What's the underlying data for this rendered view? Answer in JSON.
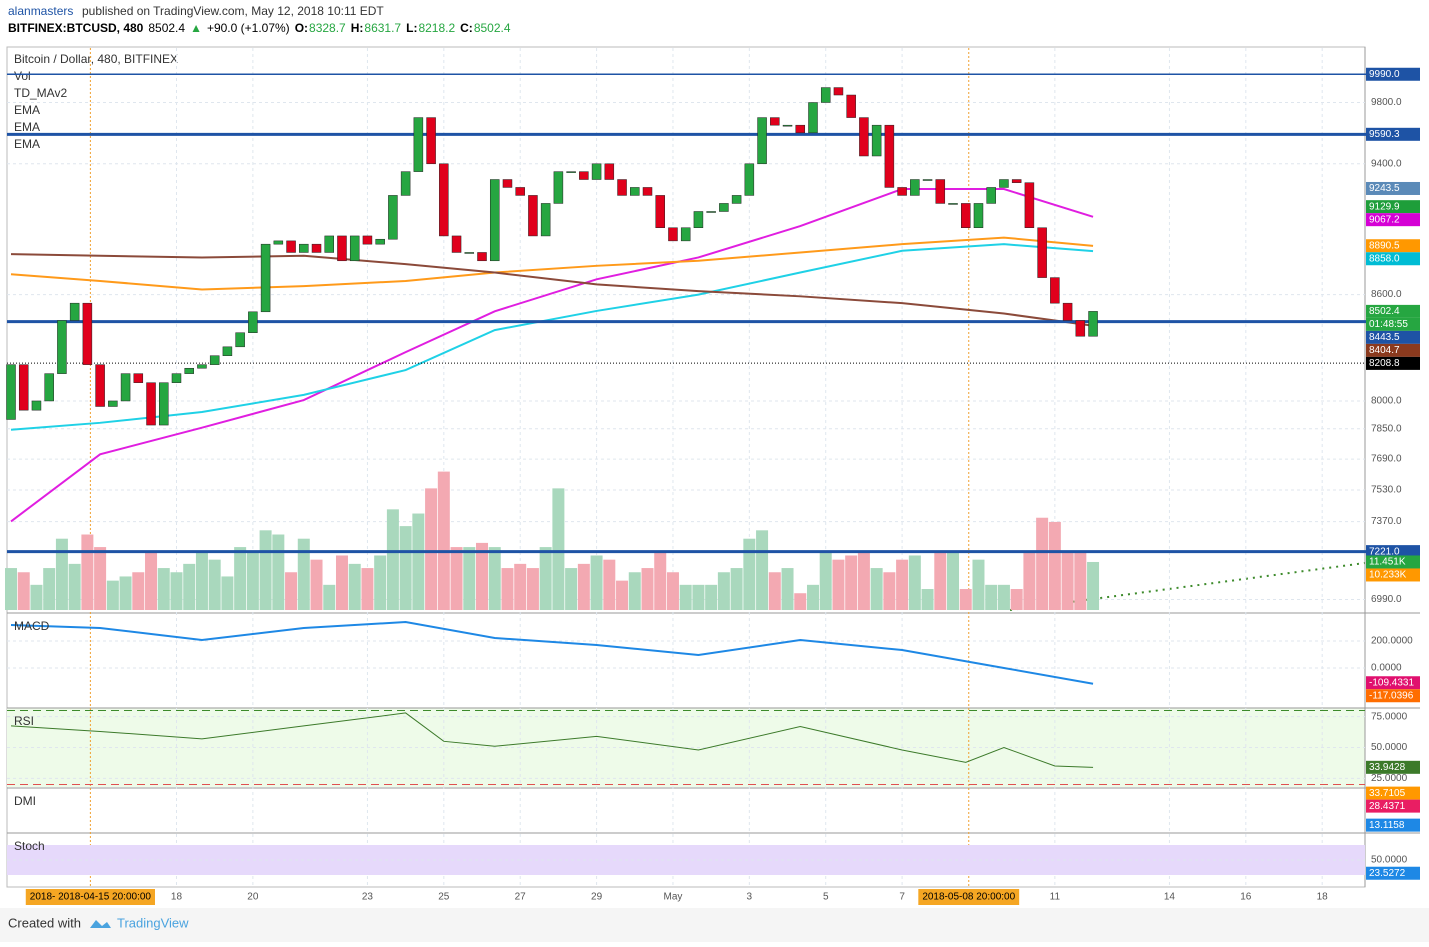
{
  "header": {
    "author": "alanmasters",
    "published": "published on TradingView.com, May 12, 2018 10:11 EDT",
    "symbol": "BITFINEX:BTCUSD, 480",
    "last": "8502.4",
    "arrow": "▲",
    "change": "+90.0 (+1.07%)",
    "ohlc": [
      {
        "label": "O:",
        "value": "8328.7"
      },
      {
        "label": "H:",
        "value": "8631.7"
      },
      {
        "label": "L:",
        "value": "8218.2"
      },
      {
        "label": "C:",
        "value": "8502.4"
      }
    ]
  },
  "legend": [
    "Bitcoin / Dollar, 480, BITFINEX",
    "Vol",
    "TD_MAv2",
    "EMA",
    "EMA",
    "EMA"
  ],
  "price": {
    "log": true,
    "ylim": [
      6940,
      10170
    ],
    "yticks": [
      {
        "value": 9800,
        "label": "9800.0"
      },
      {
        "value": 9400,
        "label": "9400.0"
      },
      {
        "value": 8600,
        "label": "8600.0"
      },
      {
        "value": 8000,
        "label": "8000.0"
      },
      {
        "value": 7850,
        "label": "7850.0"
      },
      {
        "value": 7690,
        "label": "7690.0"
      },
      {
        "value": 7530,
        "label": "7530.0"
      },
      {
        "value": 7370,
        "label": "7370.0"
      },
      {
        "value": 6990,
        "label": "6990.0"
      }
    ],
    "up_color": "#26a641",
    "down_color": "#e0001c",
    "first_open": 7900,
    "closes": [
      8200,
      7950,
      8000,
      8150,
      8450,
      8550,
      8200,
      7970,
      8000,
      8150,
      8100,
      7870,
      8100,
      8150,
      8180,
      8200,
      8250,
      8300,
      8380,
      8500,
      8900,
      8920,
      8850,
      8900,
      8850,
      8950,
      8800,
      8950,
      8900,
      8930,
      9200,
      9350,
      9700,
      9400,
      8950,
      8850,
      8850,
      8800,
      9300,
      9250,
      9200,
      8950,
      9150,
      9350,
      9350,
      9300,
      9400,
      9300,
      9200,
      9250,
      9200,
      9000,
      8920,
      9000,
      9100,
      9100,
      9150,
      9200,
      9400,
      9700,
      9650,
      9650,
      9600,
      9800,
      9900,
      9850,
      9700,
      9450,
      9650,
      9250,
      9200,
      9300,
      9300,
      9150,
      9150,
      9000,
      9150,
      9250,
      9300,
      9280,
      9000,
      8700,
      8550,
      8450,
      8360,
      8502.4
    ],
    "emas": [
      {
        "color": "#e01ee0",
        "x": [
          0,
          7,
          15,
          23,
          31,
          38,
          46,
          54,
          62,
          70,
          78,
          85
        ],
        "values": [
          7371,
          7715,
          7856,
          8005,
          8270,
          8503,
          8690,
          8820,
          9010,
          9240,
          9240,
          9067
        ]
      },
      {
        "color": "#1fd1e6",
        "x": [
          0,
          7,
          15,
          23,
          31,
          38,
          46,
          54,
          62,
          70,
          78,
          85
        ],
        "values": [
          7845,
          7882,
          7940,
          8033,
          8170,
          8395,
          8505,
          8600,
          8730,
          8860,
          8900,
          8858
        ]
      },
      {
        "color": "#ff9a1a",
        "x": [
          0,
          7,
          15,
          23,
          31,
          38,
          46,
          54,
          62,
          70,
          78,
          85
        ],
        "values": [
          8720,
          8680,
          8630,
          8650,
          8680,
          8730,
          8770,
          8800,
          8850,
          8900,
          8940,
          8890
        ]
      },
      {
        "color": "#8b4a3a",
        "x": [
          0,
          7,
          15,
          23,
          31,
          38,
          46,
          54,
          62,
          70,
          78,
          85
        ],
        "values": [
          8840,
          8830,
          8820,
          8830,
          8780,
          8730,
          8660,
          8620,
          8590,
          8550,
          8490,
          8420
        ]
      }
    ],
    "hlines": [
      {
        "value": 9990,
        "width": 1.5
      },
      {
        "value": 9590.3,
        "width": 3
      },
      {
        "value": 8443.5,
        "width": 3
      },
      {
        "value": 7221,
        "width": 3
      }
    ],
    "dotline": 8208.8,
    "tags": [
      {
        "value": 9990,
        "label": "9990.0",
        "color": "#1e53a5"
      },
      {
        "value": 9590.3,
        "label": "9590.3",
        "color": "#1e53a5"
      },
      {
        "value": 9243.5,
        "label": "9243.5",
        "color": "#5b8ab8"
      },
      {
        "value": 9129.9,
        "label": "9129.9",
        "color": "#1e9e3a"
      },
      {
        "value": 9067.2,
        "label": "9067.2",
        "color": "#d500d5"
      },
      {
        "value": 8890.5,
        "label": "8890.5",
        "color": "#ff9800"
      },
      {
        "value": 8858,
        "label": "8858.0",
        "color": "#00bcd4"
      },
      {
        "value": 8502.4,
        "label": "8502.4",
        "color": "#26a641"
      },
      {
        "label": "01:48:55",
        "color": "#26a641"
      },
      {
        "value": 8443.5,
        "label": "8443.5",
        "color": "#1e53a5"
      },
      {
        "value": 8404.7,
        "label": "8404.7",
        "color": "#8b3a1e"
      },
      {
        "value": 8208.8,
        "label": "8208.8",
        "color": "#000000"
      },
      {
        "value": 7221,
        "label": "7221.0",
        "color": "#1e53a5"
      }
    ]
  },
  "volume": {
    "ylim": [
      0,
      134
    ],
    "up_color": "#a9d8bd",
    "down_color": "#f3a9b2",
    "values": [
      10,
      9,
      6,
      10,
      17,
      11,
      18,
      15,
      7,
      8,
      9,
      14,
      10,
      9,
      11,
      14,
      12,
      8,
      15,
      14,
      19,
      18,
      9,
      17,
      12,
      6,
      13,
      11,
      10,
      13,
      24,
      20,
      23,
      29,
      33,
      15,
      15,
      16,
      15,
      10,
      11,
      10,
      15,
      29,
      10,
      11,
      13,
      12,
      7,
      9,
      10,
      14,
      9,
      6,
      6,
      6,
      9,
      10,
      17,
      19,
      9,
      10,
      4,
      6,
      14,
      12,
      13,
      14,
      10,
      9,
      12,
      13,
      5,
      14,
      14,
      5,
      12,
      6,
      6,
      5,
      14,
      22,
      21,
      14,
      14,
      11.451
    ],
    "tags": [
      {
        "value": 11.451,
        "label": "11.451K",
        "color": "#26a641"
      },
      {
        "value": 10.233,
        "label": "10.233K",
        "color": "#ff9800"
      }
    ]
  },
  "macd": {
    "title": "MACD",
    "ylim": [
      -289,
      407
    ],
    "yticks": [
      {
        "value": 200,
        "label": "200.0000"
      },
      {
        "value": 0,
        "label": "0.0000"
      }
    ],
    "color": "#1e88e5",
    "x": [
      0,
      7,
      15,
      23,
      31,
      38,
      46,
      54,
      62,
      70,
      78,
      85
    ],
    "values": [
      318,
      296,
      207,
      296,
      340,
      222,
      170,
      96,
      207,
      133,
      0,
      -117
    ],
    "tags": [
      {
        "value": -109.4331,
        "label": "-109.4331",
        "color": "#e0106e"
      },
      {
        "value": -117.0396,
        "label": "-117.0396",
        "color": "#ff6d00"
      }
    ]
  },
  "rsi": {
    "title": "RSI",
    "ylim": [
      18,
      82
    ],
    "yticks": [
      {
        "value": 75,
        "label": "75.0000"
      },
      {
        "value": 50,
        "label": "50.0000"
      },
      {
        "value": 25,
        "label": "25.0000"
      }
    ],
    "levels": [
      80,
      20
    ],
    "color": "#3c7a2a",
    "x": [
      0,
      7,
      15,
      23,
      31,
      34,
      38,
      46,
      54,
      62,
      70,
      75,
      78,
      82,
      85
    ],
    "values": [
      67.5,
      63,
      57,
      67.5,
      78,
      55,
      51,
      59,
      48,
      67,
      48,
      38,
      50,
      35,
      33.9428
    ],
    "tags": [
      {
        "value": 33.9428,
        "label": "33.9428",
        "color": "#3c7a2a"
      }
    ]
  },
  "dmi": {
    "title": "DMI",
    "ylim": [
      8.7,
      37
    ],
    "tags": [
      {
        "value": 33.7105,
        "label": "33.7105",
        "color": "#ff9800"
      },
      {
        "value": 28.4371,
        "label": "28.4371",
        "color": "#e91e63"
      },
      {
        "value": 13.1158,
        "label": "13.1158",
        "color": "#1e88e5"
      }
    ]
  },
  "stoch": {
    "title": "Stoch",
    "ylim": [
      -4,
      104
    ],
    "band": [
      20,
      80
    ],
    "yticks": [
      {
        "value": 50,
        "label": "50.0000"
      }
    ],
    "tags": [
      {
        "value": 23.5272,
        "label": "23.5272",
        "color": "#1e88e5"
      }
    ]
  },
  "dates": {
    "ticks": [
      {
        "value": 13,
        "label": "18"
      },
      {
        "value": 19,
        "label": "20"
      },
      {
        "value": 28,
        "label": "23"
      },
      {
        "value": 34,
        "label": "25"
      },
      {
        "value": 40,
        "label": "27"
      },
      {
        "value": 46,
        "label": "29"
      },
      {
        "value": 52,
        "label": "May"
      },
      {
        "value": 58,
        "label": "3"
      },
      {
        "value": 64,
        "label": "5"
      },
      {
        "value": 70,
        "label": "7"
      },
      {
        "value": 82,
        "label": "11"
      },
      {
        "value": 91,
        "label": "14"
      },
      {
        "value": 97,
        "label": "16"
      },
      {
        "value": 103,
        "label": "18"
      }
    ],
    "markers": [
      {
        "value": 6,
        "label": "2018- 2018-04-15 20:00:00"
      },
      {
        "value": 75,
        "label": "2018-05-08 20:00:00"
      }
    ]
  },
  "footer": {
    "created": "Created with",
    "brand": "TradingView"
  }
}
